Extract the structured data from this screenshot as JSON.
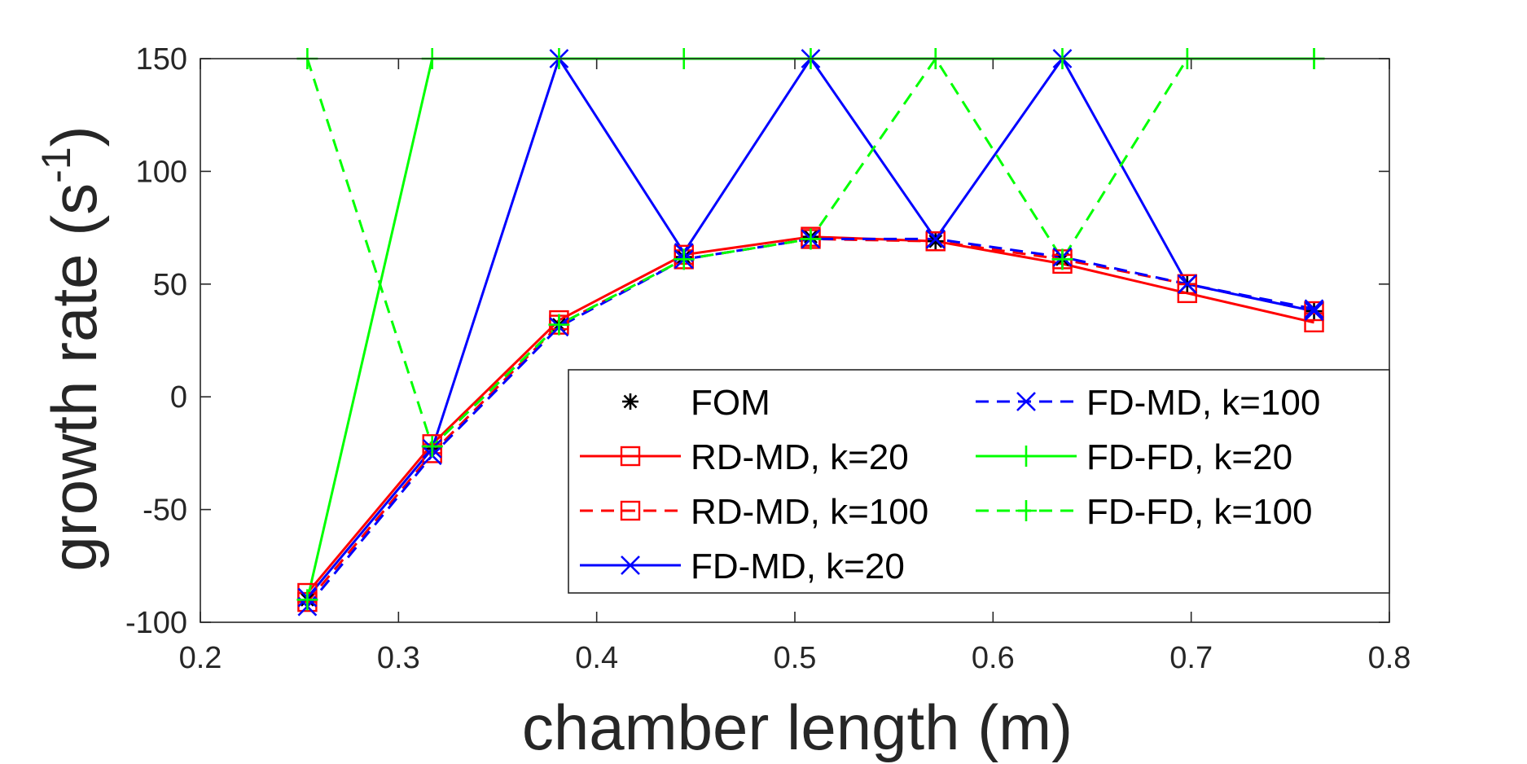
{
  "chart_data": {
    "type": "line",
    "xlabel": "chamber length (m)",
    "ylabel": "growth rate (s",
    "ylabel_superscript": "-1",
    "ylabel_suffix": ")",
    "xlim": [
      0.2,
      0.8
    ],
    "ylim": [
      -100,
      150
    ],
    "xticks": [
      "0.2",
      "0.3",
      "0.4",
      "0.5",
      "0.6",
      "0.7",
      "0.8"
    ],
    "yticks": [
      "-100",
      "-50",
      "0",
      "50",
      "100",
      "150"
    ],
    "grid": false,
    "legend_position": "lower-right",
    "x": [
      0.254,
      0.317,
      0.381,
      0.444,
      0.508,
      0.571,
      0.635,
      0.698,
      0.762
    ],
    "series": [
      {
        "name": "FOM",
        "color": "#000000",
        "dash": "none",
        "marker": "asterisk",
        "values": [
          -90,
          -23,
          32,
          62,
          71,
          69,
          61,
          50,
          38
        ]
      },
      {
        "name": "RD-MD, k=20",
        "color": "#ff0000",
        "dash": "solid",
        "marker": "square",
        "values": [
          -87,
          -21,
          34,
          63,
          71,
          69,
          59,
          46,
          33
        ]
      },
      {
        "name": "RD-MD, k=100",
        "color": "#ff0000",
        "dash": "dashed",
        "marker": "square",
        "values": [
          -91,
          -25,
          32,
          61,
          70,
          69,
          61,
          50,
          38
        ]
      },
      {
        "name": "FD-MD, k=20",
        "color": "#0000ff",
        "dash": "solid",
        "marker": "x",
        "values": [
          -89,
          -23,
          150,
          64,
          150,
          70,
          150,
          50,
          38
        ]
      },
      {
        "name": "FD-MD, k=100",
        "color": "#0000ff",
        "dash": "dashed",
        "marker": "x",
        "values": [
          -93,
          -26,
          31,
          61,
          70,
          70,
          62,
          50,
          39
        ]
      },
      {
        "name": "FD-FD, k=20",
        "color": "#00ff00",
        "dash": "solid",
        "marker": "plus",
        "values": [
          -90,
          150,
          150,
          150,
          150,
          150,
          150,
          150,
          150
        ]
      },
      {
        "name": "FD-FD, k=100",
        "color": "#00ff00",
        "dash": "dashed",
        "marker": "plus",
        "values": [
          150,
          -22,
          32,
          61,
          70,
          150,
          61,
          150,
          150
        ]
      }
    ]
  }
}
